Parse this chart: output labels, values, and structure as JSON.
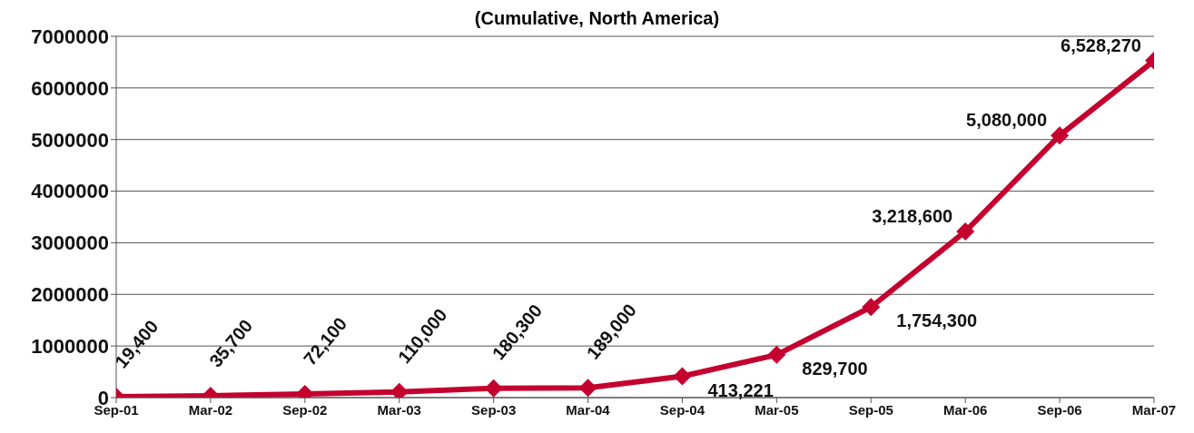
{
  "chart_data": {
    "type": "line",
    "title": "(Cumulative, North America)",
    "categories": [
      "Sep-01",
      "Mar-02",
      "Sep-02",
      "Mar-03",
      "Sep-03",
      "Mar-04",
      "Sep-04",
      "Mar-05",
      "Sep-05",
      "Mar-06",
      "Sep-06",
      "Mar-07"
    ],
    "series": [
      {
        "color": "#c4002f",
        "values": [
          19400,
          35700,
          72100,
          110000,
          180300,
          189000,
          413221,
          829700,
          1754300,
          3218600,
          5080000,
          6528270
        ],
        "value_labels": [
          "19,400",
          "35,700",
          "72,100",
          "110,000",
          "180,300",
          "189,000",
          "413,221",
          "829,700",
          "1,754,300",
          "3,218,600",
          "5,080,000",
          "6,528,270"
        ]
      }
    ],
    "ylim": [
      0,
      7000000
    ],
    "yticks": [
      0,
      1000000,
      2000000,
      3000000,
      4000000,
      5000000,
      6000000,
      7000000
    ],
    "grid": "y",
    "legend": false,
    "marker": "diamond",
    "line_style": "solid"
  }
}
